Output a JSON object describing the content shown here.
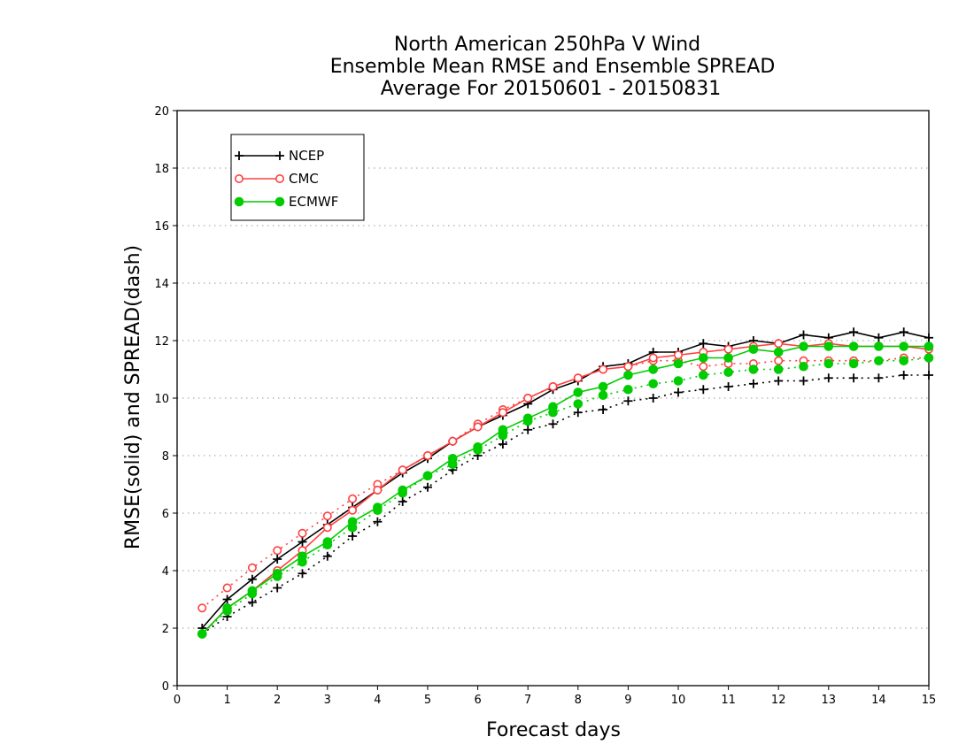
{
  "chart_data": {
    "type": "line",
    "title_lines": [
      "North American 250hPa V Wind",
      "Ensemble Mean RMSE and Ensemble SPREAD",
      "Average For 20150601 - 20150831"
    ],
    "xlabel": "Forecast days",
    "ylabel": "RMSE(solid) and SPREAD(dash)",
    "xlim": [
      0,
      15
    ],
    "ylim": [
      0,
      20
    ],
    "xticks": [
      0,
      1,
      2,
      3,
      4,
      5,
      6,
      7,
      8,
      9,
      10,
      11,
      12,
      13,
      14,
      15
    ],
    "yticks": [
      0,
      2,
      4,
      6,
      8,
      10,
      12,
      14,
      16,
      18,
      20
    ],
    "grid": true,
    "legend_position": "top-left",
    "x": [
      0.5,
      1,
      1.5,
      2,
      2.5,
      3,
      3.5,
      4,
      4.5,
      5,
      5.5,
      6,
      6.5,
      7,
      7.5,
      8,
      8.5,
      9,
      9.5,
      10,
      10.5,
      11,
      11.5,
      12,
      12.5,
      13,
      13.5,
      14,
      14.5,
      15
    ],
    "series": [
      {
        "name": "NCEP",
        "metric": "RMSE",
        "style": "solid",
        "marker": "plus",
        "color": "#000000",
        "values": [
          2.0,
          3.0,
          3.7,
          4.4,
          5.0,
          5.6,
          6.2,
          6.8,
          7.4,
          7.9,
          8.5,
          9.0,
          9.4,
          9.8,
          10.3,
          10.6,
          11.1,
          11.2,
          11.6,
          11.6,
          11.9,
          11.8,
          12.0,
          11.9,
          12.2,
          12.1,
          12.3,
          12.1,
          12.3,
          12.1
        ]
      },
      {
        "name": "CMC",
        "metric": "RMSE",
        "style": "solid",
        "marker": "circle-open",
        "color": "#ff4040",
        "values": [
          1.8,
          2.7,
          3.3,
          4.0,
          4.7,
          5.5,
          6.1,
          6.8,
          7.5,
          8.0,
          8.5,
          9.0,
          9.5,
          10.0,
          10.4,
          10.7,
          11.0,
          11.1,
          11.4,
          11.5,
          11.6,
          11.7,
          11.8,
          11.9,
          11.8,
          11.9,
          11.8,
          11.8,
          11.8,
          11.7
        ]
      },
      {
        "name": "ECMWF",
        "metric": "RMSE",
        "style": "solid",
        "marker": "circle-filled",
        "color": "#00cc00",
        "values": [
          1.8,
          2.7,
          3.3,
          3.9,
          4.5,
          5.0,
          5.7,
          6.2,
          6.8,
          7.3,
          7.9,
          8.3,
          8.9,
          9.3,
          9.7,
          10.2,
          10.4,
          10.8,
          11.0,
          11.2,
          11.4,
          11.4,
          11.7,
          11.6,
          11.8,
          11.8,
          11.8,
          11.8,
          11.8,
          11.8
        ]
      },
      {
        "name": "NCEP",
        "metric": "SPREAD",
        "style": "dash",
        "marker": "plus",
        "color": "#000000",
        "values": [
          1.8,
          2.4,
          2.9,
          3.4,
          3.9,
          4.5,
          5.2,
          5.7,
          6.4,
          6.9,
          7.5,
          8.0,
          8.4,
          8.9,
          9.1,
          9.5,
          9.6,
          9.9,
          10.0,
          10.2,
          10.3,
          10.4,
          10.5,
          10.6,
          10.6,
          10.7,
          10.7,
          10.7,
          10.8,
          10.8
        ]
      },
      {
        "name": "CMC",
        "metric": "SPREAD",
        "style": "dash",
        "marker": "circle-open",
        "color": "#ff4040",
        "values": [
          2.7,
          3.4,
          4.1,
          4.7,
          5.3,
          5.9,
          6.5,
          7.0,
          7.5,
          8.0,
          8.5,
          9.1,
          9.6,
          10.0,
          10.4,
          10.7,
          11.0,
          11.1,
          11.3,
          11.3,
          11.1,
          11.2,
          11.2,
          11.3,
          11.3,
          11.3,
          11.3,
          11.3,
          11.4,
          11.4
        ]
      },
      {
        "name": "ECMWF",
        "metric": "SPREAD",
        "style": "dash",
        "marker": "circle-filled",
        "color": "#00cc00",
        "values": [
          1.8,
          2.6,
          3.2,
          3.8,
          4.3,
          4.9,
          5.5,
          6.1,
          6.7,
          7.3,
          7.7,
          8.2,
          8.7,
          9.2,
          9.5,
          9.8,
          10.1,
          10.3,
          10.5,
          10.6,
          10.8,
          10.9,
          11.0,
          11.0,
          11.1,
          11.2,
          11.2,
          11.3,
          11.3,
          11.4
        ]
      }
    ],
    "legend": [
      "NCEP",
      "CMC",
      "ECMWF"
    ]
  }
}
